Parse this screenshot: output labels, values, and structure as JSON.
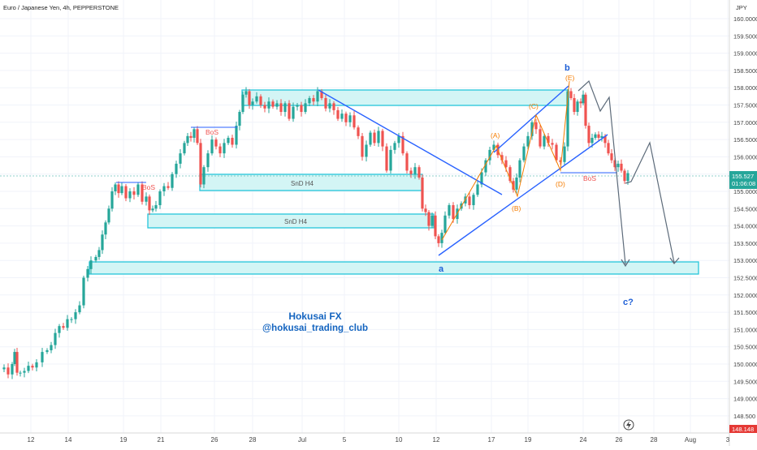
{
  "symbol_title": "Euro / Japanese Yen, 4h, PEPPERSTONE",
  "currency": "JPY",
  "price_labels": [
    "160.0000",
    "159.5000",
    "159.0000",
    "158.5000",
    "158.0000",
    "157.5000",
    "157.0000",
    "156.5000",
    "156.0000",
    "155.5000",
    "155.0000",
    "154.5000",
    "154.0000",
    "153.5000",
    "153.0000",
    "152.5000",
    "152.0000",
    "151.5000",
    "151.0000",
    "150.5000",
    "150.0000",
    "149.5000",
    "149.0000",
    "148.500"
  ],
  "date_labels": [
    "12",
    "14",
    "19",
    "21",
    "26",
    "28",
    "Jul",
    "5",
    "10",
    "12",
    "17",
    "19",
    "24",
    "26",
    "28",
    "Aug",
    "3"
  ],
  "current_price": "155.527",
  "countdown": "01:06:08",
  "bottom_price": "148.148",
  "annotations": {
    "wave_a": "a",
    "wave_b": "b",
    "wave_c": "c?",
    "A": "(A)",
    "B": "(B)",
    "C": "(C)",
    "D": "(D)",
    "E": "(E)",
    "bos1": "BoS",
    "bos2": "BoS",
    "bos3": "BoS",
    "snd1": "SnD H4",
    "snd2": "SnD H4"
  },
  "watermark": {
    "line1": "Hokusai FX",
    "line2": "@hokusai_trading_club"
  },
  "colors": {
    "up": "#26a69a",
    "down": "#ef5350",
    "zone_fill": "#d3f5f5",
    "zone_stroke": "#26c6da",
    "trend": "#2962ff",
    "forecast": "#5d6b7a",
    "elliott": "#f57c00",
    "wave": "#1e5fd6",
    "text_blue": "#1565c0"
  },
  "chart_data": {
    "type": "candlestick",
    "title": "Euro / Japanese Yen, 4h, PEPPERSTONE",
    "ylim": [
      148.5,
      160.0
    ],
    "y_unit": "JPY",
    "current_price": 155.527,
    "x_ticks": [
      "12",
      "14",
      "19",
      "21",
      "26",
      "28",
      "Jul",
      "5",
      "10",
      "12",
      "17",
      "19",
      "24",
      "26",
      "28",
      "Aug",
      "3"
    ],
    "path_points": [
      {
        "x": 0,
        "y": 149.85
      },
      {
        "x": 5,
        "y": 149.9
      },
      {
        "x": 10,
        "y": 149.7
      },
      {
        "x": 15,
        "y": 150.0
      },
      {
        "x": 18,
        "y": 150.35
      },
      {
        "x": 21,
        "y": 149.75
      },
      {
        "x": 25,
        "y": 149.75
      },
      {
        "x": 30,
        "y": 149.8
      },
      {
        "x": 35,
        "y": 149.95
      },
      {
        "x": 40,
        "y": 149.9
      },
      {
        "x": 45,
        "y": 150.05
      },
      {
        "x": 52,
        "y": 150.35
      },
      {
        "x": 58,
        "y": 150.4
      },
      {
        "x": 63,
        "y": 150.55
      },
      {
        "x": 68,
        "y": 150.9
      },
      {
        "x": 73,
        "y": 151.1
      },
      {
        "x": 78,
        "y": 151.05
      },
      {
        "x": 83,
        "y": 151.3
      },
      {
        "x": 88,
        "y": 151.3
      },
      {
        "x": 93,
        "y": 151.5
      },
      {
        "x": 98,
        "y": 151.7
      },
      {
        "x": 103,
        "y": 152.5
      },
      {
        "x": 108,
        "y": 152.75
      },
      {
        "x": 112,
        "y": 153.0
      },
      {
        "x": 118,
        "y": 153.1
      },
      {
        "x": 122,
        "y": 153.3
      },
      {
        "x": 126,
        "y": 153.75
      },
      {
        "x": 130,
        "y": 154.1
      },
      {
        "x": 134,
        "y": 154.5
      },
      {
        "x": 138,
        "y": 155.0
      },
      {
        "x": 142,
        "y": 155.2
      },
      {
        "x": 146,
        "y": 154.95
      },
      {
        "x": 150,
        "y": 155.15
      },
      {
        "x": 155,
        "y": 154.8
      },
      {
        "x": 160,
        "y": 155.0
      },
      {
        "x": 165,
        "y": 154.9
      },
      {
        "x": 170,
        "y": 155.2
      },
      {
        "x": 175,
        "y": 154.7
      },
      {
        "x": 180,
        "y": 154.85
      },
      {
        "x": 184,
        "y": 154.45
      },
      {
        "x": 188,
        "y": 154.5
      },
      {
        "x": 192,
        "y": 154.6
      },
      {
        "x": 197,
        "y": 155.0
      },
      {
        "x": 202,
        "y": 155.15
      },
      {
        "x": 207,
        "y": 155.1
      },
      {
        "x": 212,
        "y": 155.5
      },
      {
        "x": 217,
        "y": 155.8
      },
      {
        "x": 222,
        "y": 156.1
      },
      {
        "x": 227,
        "y": 156.4
      },
      {
        "x": 231,
        "y": 156.6
      },
      {
        "x": 235,
        "y": 156.55
      },
      {
        "x": 239,
        "y": 156.8
      },
      {
        "x": 243,
        "y": 156.4
      },
      {
        "x": 247,
        "y": 155.2
      },
      {
        "x": 251,
        "y": 155.7
      },
      {
        "x": 256,
        "y": 156.1
      },
      {
        "x": 261,
        "y": 156.5
      },
      {
        "x": 266,
        "y": 156.3
      },
      {
        "x": 271,
        "y": 156.1
      },
      {
        "x": 276,
        "y": 156.4
      },
      {
        "x": 281,
        "y": 156.55
      },
      {
        "x": 286,
        "y": 156.35
      },
      {
        "x": 291,
        "y": 156.9
      },
      {
        "x": 295,
        "y": 157.3
      },
      {
        "x": 299,
        "y": 157.8
      },
      {
        "x": 303,
        "y": 157.9
      },
      {
        "x": 307,
        "y": 157.5
      },
      {
        "x": 311,
        "y": 157.6
      },
      {
        "x": 316,
        "y": 157.75
      },
      {
        "x": 321,
        "y": 157.5
      },
      {
        "x": 326,
        "y": 157.4
      },
      {
        "x": 331,
        "y": 157.6
      },
      {
        "x": 336,
        "y": 157.45
      },
      {
        "x": 341,
        "y": 157.55
      },
      {
        "x": 346,
        "y": 157.3
      },
      {
        "x": 351,
        "y": 157.55
      },
      {
        "x": 356,
        "y": 157.1
      },
      {
        "x": 361,
        "y": 157.45
      },
      {
        "x": 366,
        "y": 157.5
      },
      {
        "x": 371,
        "y": 157.3
      },
      {
        "x": 376,
        "y": 157.55
      },
      {
        "x": 381,
        "y": 157.7
      },
      {
        "x": 386,
        "y": 157.6
      },
      {
        "x": 391,
        "y": 157.9
      },
      {
        "x": 396,
        "y": 157.7
      },
      {
        "x": 401,
        "y": 157.4
      },
      {
        "x": 406,
        "y": 157.55
      },
      {
        "x": 411,
        "y": 157.35
      },
      {
        "x": 416,
        "y": 157.1
      },
      {
        "x": 421,
        "y": 157.25
      },
      {
        "x": 426,
        "y": 157.0
      },
      {
        "x": 431,
        "y": 157.2
      },
      {
        "x": 436,
        "y": 156.85
      },
      {
        "x": 441,
        "y": 156.6
      },
      {
        "x": 446,
        "y": 156.0
      },
      {
        "x": 451,
        "y": 156.35
      },
      {
        "x": 456,
        "y": 156.7
      },
      {
        "x": 461,
        "y": 156.4
      },
      {
        "x": 466,
        "y": 156.75
      },
      {
        "x": 471,
        "y": 156.3
      },
      {
        "x": 476,
        "y": 155.6
      },
      {
        "x": 481,
        "y": 156.2
      },
      {
        "x": 486,
        "y": 156.4
      },
      {
        "x": 491,
        "y": 156.6
      },
      {
        "x": 496,
        "y": 156.1
      },
      {
        "x": 501,
        "y": 155.6
      },
      {
        "x": 506,
        "y": 155.5
      },
      {
        "x": 511,
        "y": 155.7
      },
      {
        "x": 516,
        "y": 155.4
      },
      {
        "x": 520,
        "y": 154.5
      },
      {
        "x": 524,
        "y": 154.4
      },
      {
        "x": 528,
        "y": 154.0
      },
      {
        "x": 532,
        "y": 154.3
      },
      {
        "x": 536,
        "y": 153.7
      },
      {
        "x": 540,
        "y": 153.5
      },
      {
        "x": 544,
        "y": 153.8
      },
      {
        "x": 548,
        "y": 154.3
      },
      {
        "x": 553,
        "y": 154.6
      },
      {
        "x": 558,
        "y": 154.2
      },
      {
        "x": 563,
        "y": 154.5
      },
      {
        "x": 568,
        "y": 154.65
      },
      {
        "x": 573,
        "y": 154.85
      },
      {
        "x": 578,
        "y": 154.6
      },
      {
        "x": 583,
        "y": 154.9
      },
      {
        "x": 588,
        "y": 155.2
      },
      {
        "x": 593,
        "y": 155.55
      },
      {
        "x": 598,
        "y": 155.9
      },
      {
        "x": 603,
        "y": 156.2
      },
      {
        "x": 608,
        "y": 156.35
      },
      {
        "x": 613,
        "y": 156.05
      },
      {
        "x": 618,
        "y": 155.9
      },
      {
        "x": 623,
        "y": 155.7
      },
      {
        "x": 628,
        "y": 155.3
      },
      {
        "x": 632,
        "y": 155.05
      },
      {
        "x": 636,
        "y": 155.4
      },
      {
        "x": 640,
        "y": 155.9
      },
      {
        "x": 645,
        "y": 156.3
      },
      {
        "x": 650,
        "y": 156.6
      },
      {
        "x": 655,
        "y": 157.0
      },
      {
        "x": 660,
        "y": 156.8
      },
      {
        "x": 665,
        "y": 156.3
      },
      {
        "x": 670,
        "y": 156.6
      },
      {
        "x": 675,
        "y": 156.4
      },
      {
        "x": 680,
        "y": 156.35
      },
      {
        "x": 685,
        "y": 155.9
      },
      {
        "x": 690,
        "y": 155.85
      },
      {
        "x": 695,
        "y": 156.3
      },
      {
        "x": 699,
        "y": 157.9
      },
      {
        "x": 703,
        "y": 157.7
      },
      {
        "x": 707,
        "y": 157.3
      },
      {
        "x": 711,
        "y": 157.6
      },
      {
        "x": 715,
        "y": 157.55
      },
      {
        "x": 718,
        "y": 157.8
      },
      {
        "x": 721,
        "y": 156.9
      },
      {
        "x": 725,
        "y": 156.4
      },
      {
        "x": 729,
        "y": 156.55
      },
      {
        "x": 733,
        "y": 156.65
      },
      {
        "x": 737,
        "y": 156.55
      },
      {
        "x": 741,
        "y": 156.6
      },
      {
        "x": 745,
        "y": 156.4
      },
      {
        "x": 749,
        "y": 156.1
      },
      {
        "x": 753,
        "y": 155.9
      },
      {
        "x": 757,
        "y": 155.7
      },
      {
        "x": 761,
        "y": 155.8
      },
      {
        "x": 765,
        "y": 155.6
      },
      {
        "x": 769,
        "y": 155.3
      },
      {
        "x": 773,
        "y": 155.527
      }
    ]
  }
}
